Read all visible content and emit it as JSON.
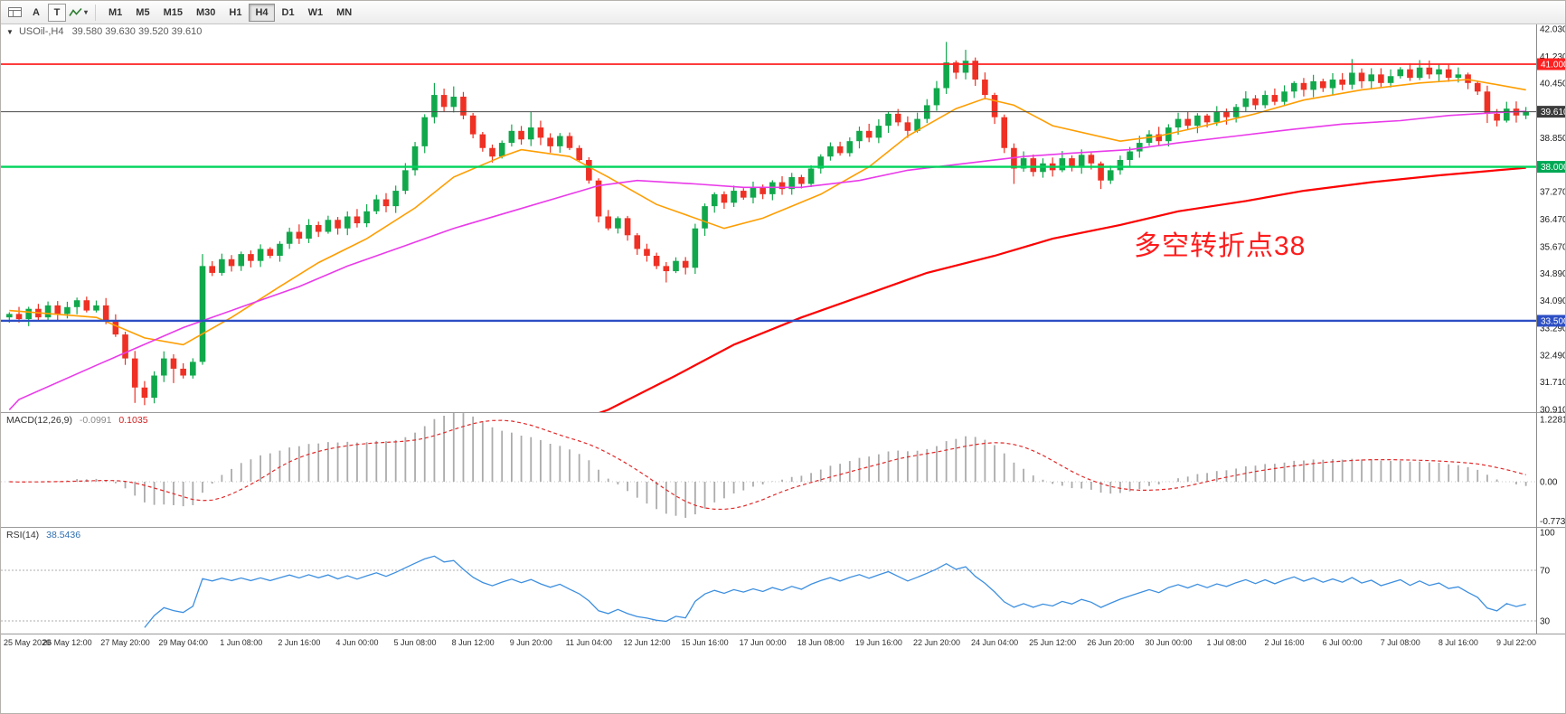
{
  "toolbar": {
    "icons": [
      {
        "name": "chart-windows-icon"
      },
      {
        "name": "cursor-tool-icon",
        "label": "A"
      },
      {
        "name": "text-tool-icon",
        "label": "T"
      },
      {
        "name": "indicators-dropdown-icon"
      }
    ],
    "timeframes": [
      "M1",
      "M5",
      "M15",
      "M30",
      "H1",
      "H4",
      "D1",
      "W1",
      "MN"
    ],
    "active_timeframe": "H4"
  },
  "chart": {
    "symbol_title": "USOil-,H4",
    "ohlc_text": "39.580 39.630 39.520 39.610",
    "annotation": {
      "text": "多空转折点38",
      "color": "#fe1c1c"
    }
  },
  "macd": {
    "label": "MACD(12,26,9)",
    "main_value": "-0.0991",
    "signal_value": "0.1035",
    "axis_labels": [
      {
        "label": "1.2281",
        "value": 1.2281
      },
      {
        "label": "0.00",
        "value": 0
      },
      {
        "label": "-0.7738",
        "value": -0.7738
      }
    ]
  },
  "rsi": {
    "label": "RSI(14)",
    "value": "38.5436",
    "levels": [
      {
        "label": "100",
        "value": 100
      },
      {
        "label": "70",
        "value": 70
      },
      {
        "label": "30",
        "value": 30
      }
    ]
  },
  "price_axis": {
    "ticks": [
      "42.030",
      "41.230",
      "40.450",
      "38.850",
      "37.270",
      "36.470",
      "35.670",
      "34.890",
      "34.090",
      "33.290",
      "32.490",
      "31.710",
      "30.910"
    ],
    "badges": [
      {
        "label": "41.000",
        "price": 41.0,
        "color": "#fe2020"
      },
      {
        "label": "39.610",
        "price": 39.61,
        "color": "#3c3c3c"
      },
      {
        "label": "38.000",
        "price": 38.0,
        "color": "#00a855"
      },
      {
        "label": "33.500",
        "price": 33.5,
        "color": "#2d4fc4"
      }
    ]
  },
  "time_axis": [
    "25 May 2020",
    "26 May 12:00",
    "27 May 20:00",
    "29 May 04:00",
    "1 Jun 08:00",
    "2 Jun 16:00",
    "4 Jun 00:00",
    "5 Jun 08:00",
    "8 Jun 12:00",
    "9 Jun 20:00",
    "11 Jun 04:00",
    "12 Jun 12:00",
    "15 Jun 16:00",
    "17 Jun 00:00",
    "18 Jun 08:00",
    "19 Jun 16:00",
    "22 Jun 20:00",
    "24 Jun 04:00",
    "25 Jun 12:00",
    "26 Jun 20:00",
    "30 Jun 00:00",
    "1 Jul 08:00",
    "2 Jul 16:00",
    "6 Jul 00:00",
    "7 Jul 08:00",
    "8 Jul 16:00",
    "9 Jul 22:00"
  ],
  "chart_data": {
    "type": "candlestick",
    "title": "USOil-,H4",
    "last_bar": {
      "open": 39.58,
      "high": 39.63,
      "low": 39.52,
      "close": 39.61
    },
    "y_range": [
      30.91,
      42.03
    ],
    "colors": {
      "bull": "#11a84c",
      "bear": "#ee3124",
      "macd_histogram": "#ababab",
      "macd_signal": "#e22a2a",
      "rsi_line": "#3d8fe0"
    },
    "closes": [
      33.7,
      33.55,
      33.85,
      33.6,
      33.95,
      33.7,
      33.9,
      34.1,
      33.8,
      33.95,
      33.5,
      33.1,
      32.4,
      31.55,
      31.25,
      31.9,
      32.4,
      32.1,
      31.9,
      32.3,
      35.1,
      34.9,
      35.3,
      35.1,
      35.45,
      35.25,
      35.6,
      35.4,
      35.75,
      36.1,
      35.9,
      36.3,
      36.1,
      36.45,
      36.2,
      36.55,
      36.35,
      36.7,
      37.05,
      36.85,
      37.3,
      37.9,
      38.6,
      39.45,
      40.1,
      39.75,
      40.05,
      39.5,
      38.95,
      38.55,
      38.3,
      38.7,
      39.05,
      38.8,
      39.15,
      38.85,
      38.6,
      38.9,
      38.55,
      38.2,
      37.6,
      36.55,
      36.2,
      36.5,
      36.0,
      35.6,
      35.4,
      35.1,
      34.95,
      35.25,
      35.05,
      36.2,
      36.85,
      37.2,
      36.95,
      37.3,
      37.1,
      37.4,
      37.2,
      37.55,
      37.35,
      37.7,
      37.5,
      37.95,
      38.3,
      38.6,
      38.4,
      38.75,
      39.05,
      38.85,
      39.2,
      39.55,
      39.3,
      39.05,
      39.4,
      39.8,
      40.3,
      41.05,
      40.75,
      41.1,
      40.55,
      40.1,
      39.45,
      38.55,
      37.95,
      38.25,
      37.85,
      38.1,
      37.9,
      38.25,
      38.0,
      38.35,
      38.1,
      37.6,
      37.9,
      38.2,
      38.45,
      38.7,
      38.95,
      38.75,
      39.15,
      39.4,
      39.2,
      39.5,
      39.3,
      39.6,
      39.45,
      39.75,
      40.0,
      39.8,
      40.1,
      39.9,
      40.2,
      40.45,
      40.25,
      40.5,
      40.3,
      40.55,
      40.4,
      40.75,
      40.5,
      40.7,
      40.45,
      40.65,
      40.85,
      40.6,
      40.9,
      40.7,
      40.85,
      40.6,
      40.7,
      40.45,
      40.2,
      39.55,
      39.35,
      39.7,
      39.5,
      39.61
    ],
    "wick_overrides": {
      "13": {
        "l": 31.1
      },
      "17": {
        "l": 31.68
      },
      "20": {
        "h": 35.45
      },
      "44": {
        "h": 40.45
      },
      "46": {
        "h": 40.35
      },
      "54": {
        "h": 39.6
      },
      "68": {
        "l": 34.62
      },
      "97": {
        "h": 41.65
      },
      "99": {
        "h": 41.42
      },
      "104": {
        "l": 37.5
      },
      "113": {
        "l": 37.35
      },
      "139": {
        "h": 41.15
      },
      "146": {
        "h": 41.12
      },
      "153": {
        "l": 39.28
      }
    },
    "ma_lines": [
      {
        "name": "ma-fast-orange",
        "color": "#ff9d00",
        "width": 1.6,
        "points": [
          [
            0,
            33.8
          ],
          [
            9,
            33.6
          ],
          [
            14,
            33.0
          ],
          [
            18,
            32.8
          ],
          [
            23,
            33.6
          ],
          [
            28,
            34.5
          ],
          [
            32,
            35.2
          ],
          [
            37,
            35.9
          ],
          [
            42,
            36.8
          ],
          [
            46,
            37.7
          ],
          [
            51,
            38.3
          ],
          [
            53,
            38.5
          ],
          [
            58,
            38.3
          ],
          [
            62,
            37.7
          ],
          [
            67,
            36.9
          ],
          [
            74,
            36.2
          ],
          [
            78,
            36.5
          ],
          [
            84,
            37.2
          ],
          [
            89,
            38.0
          ],
          [
            93,
            38.9
          ],
          [
            98,
            39.7
          ],
          [
            101,
            40.0
          ],
          [
            104,
            39.8
          ],
          [
            108,
            39.2
          ],
          [
            115,
            38.75
          ],
          [
            119,
            38.9
          ],
          [
            123,
            39.15
          ],
          [
            129,
            39.55
          ],
          [
            134,
            39.95
          ],
          [
            140,
            40.25
          ],
          [
            146,
            40.45
          ],
          [
            151,
            40.55
          ],
          [
            157,
            40.25
          ]
        ]
      },
      {
        "name": "ma-mid-magenta",
        "color": "#e93ae9",
        "width": 1.6,
        "points": [
          [
            0,
            30.9
          ],
          [
            1,
            31.2
          ],
          [
            9,
            32.2
          ],
          [
            18,
            33.3
          ],
          [
            24,
            33.9
          ],
          [
            30,
            34.5
          ],
          [
            35,
            35.1
          ],
          [
            41,
            35.7
          ],
          [
            46,
            36.2
          ],
          [
            52,
            36.7
          ],
          [
            58,
            37.2
          ],
          [
            61,
            37.45
          ],
          [
            65,
            37.6
          ],
          [
            71,
            37.5
          ],
          [
            76,
            37.4
          ],
          [
            82,
            37.4
          ],
          [
            88,
            37.6
          ],
          [
            93,
            37.9
          ],
          [
            99,
            38.1
          ],
          [
            105,
            38.3
          ],
          [
            110,
            38.4
          ],
          [
            116,
            38.5
          ],
          [
            121,
            38.7
          ],
          [
            127,
            38.9
          ],
          [
            133,
            39.1
          ],
          [
            138,
            39.25
          ],
          [
            144,
            39.35
          ],
          [
            149,
            39.5
          ],
          [
            155,
            39.6
          ],
          [
            157,
            39.62
          ]
        ]
      },
      {
        "name": "ma-slow-red",
        "color": "#fe0000",
        "width": 2.2,
        "points": [
          [
            55,
            30.2
          ],
          [
            62,
            30.9
          ],
          [
            69,
            31.9
          ],
          [
            75,
            32.8
          ],
          [
            82,
            33.6
          ],
          [
            89,
            34.3
          ],
          [
            95,
            34.9
          ],
          [
            102,
            35.4
          ],
          [
            108,
            35.9
          ],
          [
            115,
            36.3
          ],
          [
            121,
            36.7
          ],
          [
            128,
            37.0
          ],
          [
            134,
            37.3
          ],
          [
            141,
            37.55
          ],
          [
            148,
            37.75
          ],
          [
            154,
            37.9
          ],
          [
            157,
            37.97
          ]
        ]
      }
    ],
    "hlines": [
      {
        "price": 41.0,
        "color": "#fe2020",
        "width": 1.8,
        "name": "resistance-line-41"
      },
      {
        "price": 38.0,
        "color": "#00d45c",
        "width": 2.4,
        "name": "support-line-38"
      },
      {
        "price": 33.5,
        "color": "#2d4fc4",
        "width": 2.4,
        "name": "support-line-33-5"
      },
      {
        "price": 39.61,
        "color": "#4a4a4a",
        "width": 1.0,
        "name": "current-price-line"
      }
    ]
  }
}
